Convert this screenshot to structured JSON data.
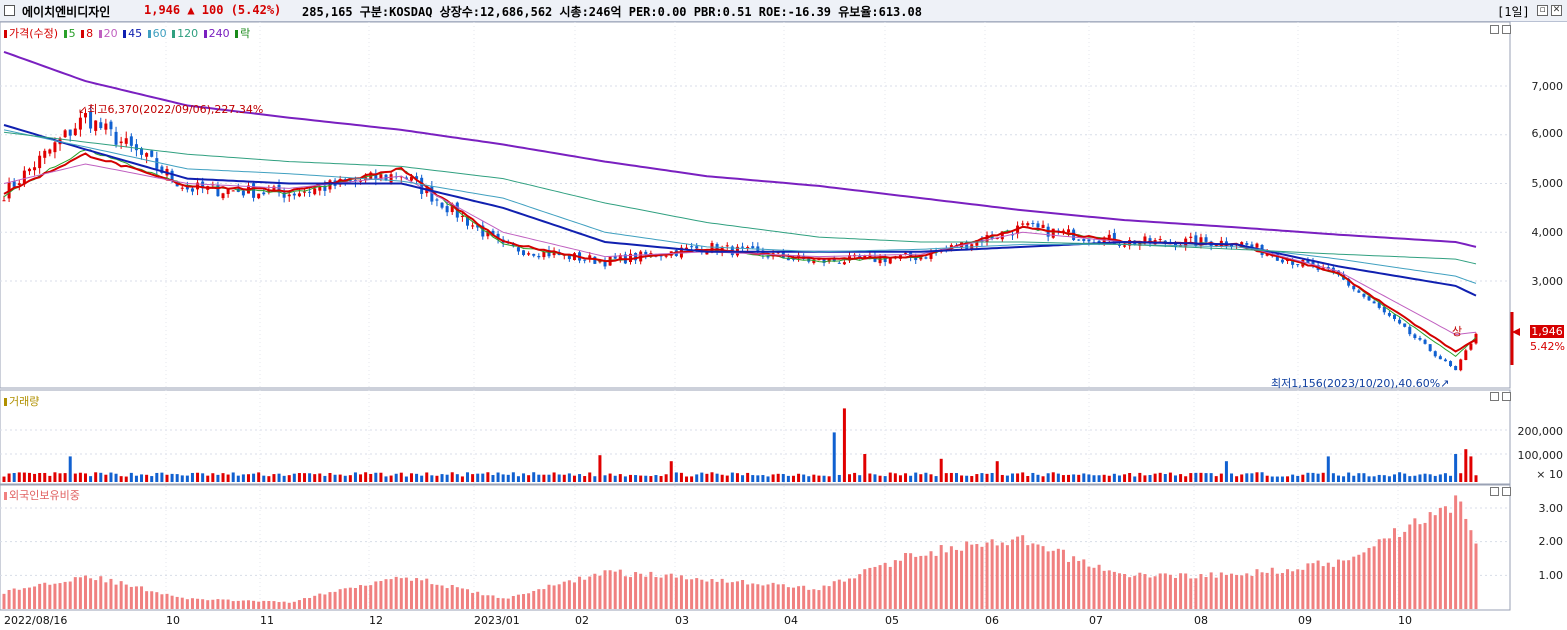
{
  "titlebar": {
    "name": "에이치엔비디자인",
    "price_change": "1,946 ▲ 100 (5.42%)",
    "info": "285,165  구분:KOSDAQ 상장수:12,686,562 시총:246억 PER:0.00 PBR:0.51 ROE:-16.39 유보율:613.08",
    "period": "[1일]",
    "restore_glyph": "▫",
    "close_glyph": "✕"
  },
  "price_panel": {
    "legend_title": "가격(수정)",
    "ma_labels": [
      "5",
      "8",
      "20",
      "45",
      "60",
      "120",
      "240",
      "락"
    ],
    "ma_colors": [
      "#2aa02a",
      "#d40000",
      "#c060c0",
      "#1020b0",
      "#40a0c0",
      "#30a080",
      "#7a20c0",
      "#1a8a1a"
    ],
    "axis_ticks": [
      "7,000",
      "6,000",
      "5,000",
      "4,000",
      "3,000"
    ],
    "high_annotation": "최고6,370(2022/09/06),227.34%",
    "low_annotation": "최저1,156(2023/10/20),40.60%",
    "sang_mark": "상",
    "current_price": "1,946",
    "current_pct": "5.42%"
  },
  "volume_panel": {
    "legend_title": "거래량",
    "axis_ticks": [
      "200,000",
      "100,000",
      "× 10"
    ]
  },
  "foreign_panel": {
    "legend_title": "외국인보유비중",
    "axis_ticks": [
      "3.00",
      "2.00",
      "1.00"
    ]
  },
  "x_axis_labels": [
    "2022/08/16",
    "10",
    "11",
    "12",
    "2023/01",
    "02",
    "03",
    "04",
    "05",
    "06",
    "07",
    "08",
    "09",
    "10"
  ],
  "colors": {
    "up": "#e00000",
    "down": "#1060d0",
    "ma5": "#2aa02a",
    "ma8": "#d40000",
    "ma20": "#c060c0",
    "ma45": "#1020b0",
    "ma60": "#40a0c0",
    "ma120": "#30a080",
    "ma240": "#7a20c0",
    "foreign_bar": "#f08080"
  },
  "chart_data": {
    "type": "line",
    "x": [
      "2022/08/16",
      "2022/09/06",
      "2022/10",
      "2022/11",
      "2022/12",
      "2023/01",
      "2023/02",
      "2023/03",
      "2023/04",
      "2023/05",
      "2023/06",
      "2023/07",
      "2023/08",
      "2023/09",
      "2023/10/20",
      "2023/10"
    ],
    "series": [
      {
        "name": "가격(수정)",
        "values": [
          4800,
          6370,
          4900,
          4800,
          5200,
          3700,
          3400,
          3700,
          3400,
          3500,
          4100,
          3800,
          3800,
          3100,
          1156,
          1946
        ]
      },
      {
        "name": "5",
        "values": [
          4750,
          5700,
          4950,
          4800,
          5300,
          3750,
          3400,
          3650,
          3400,
          3500,
          4100,
          3800,
          3750,
          3150,
          1450,
          1850
        ]
      },
      {
        "name": "8",
        "values": [
          4800,
          5600,
          4950,
          4850,
          5300,
          3800,
          3400,
          3650,
          3450,
          3500,
          4100,
          3800,
          3750,
          3150,
          1550,
          1800
        ]
      },
      {
        "name": "20",
        "values": [
          5000,
          5400,
          5000,
          4900,
          5150,
          4000,
          3500,
          3600,
          3500,
          3550,
          4000,
          3800,
          3750,
          3200,
          1900,
          1950
        ]
      },
      {
        "name": "45",
        "values": [
          6200,
          5700,
          5100,
          5000,
          5000,
          4500,
          3800,
          3600,
          3600,
          3600,
          3700,
          3800,
          3750,
          3300,
          2900,
          2700
        ]
      },
      {
        "name": "60",
        "values": [
          6100,
          5750,
          5300,
          5200,
          5050,
          4700,
          4000,
          3700,
          3600,
          3650,
          3750,
          3750,
          3700,
          3450,
          3100,
          2950
        ]
      },
      {
        "name": "120",
        "values": [
          6050,
          5850,
          5600,
          5450,
          5350,
          5100,
          4600,
          4200,
          3900,
          3800,
          3800,
          3750,
          3650,
          3550,
          3450,
          3350
        ]
      },
      {
        "name": "240",
        "values": [
          7700,
          7100,
          6600,
          6350,
          6100,
          5800,
          5450,
          5150,
          4950,
          4700,
          4450,
          4250,
          4100,
          3950,
          3800,
          3700
        ]
      }
    ],
    "volume_peak": 290000,
    "foreign_ratio": [
      0.5,
      1.0,
      0.3,
      0.2,
      1.0,
      0.3,
      1.1,
      0.9,
      0.6,
      1.7,
      2.0,
      1.0,
      1.0,
      1.4,
      3.2,
      2.1
    ],
    "annotations": {
      "high": {
        "date": "2022/09/06",
        "price": 6370,
        "pct": "227.34%"
      },
      "low": {
        "date": "2023/10/20",
        "price": 1156,
        "pct": "40.60%"
      }
    },
    "ylim_price": [
      1000,
      8000
    ],
    "ylim_foreign": [
      0,
      3.5
    ]
  }
}
